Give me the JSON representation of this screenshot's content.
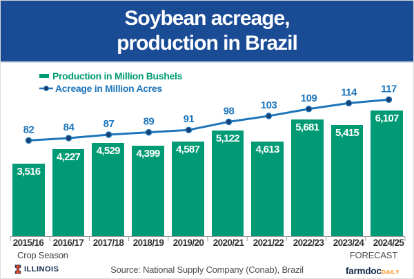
{
  "header": {
    "title_lines": [
      "Soybean acreage,",
      "production in Brazil"
    ]
  },
  "legend": [
    {
      "label": "Production in Million Bushels",
      "type": "bar"
    },
    {
      "label": "Acreage in Million Acres",
      "type": "line"
    }
  ],
  "chart_data": {
    "type": "bar+line",
    "categories": [
      "2015/16",
      "2016/17",
      "2017/18",
      "2018/19",
      "2019/20",
      "2020/21",
      "2021/22",
      "2022/23",
      "2023/24",
      "2024/25"
    ],
    "series": [
      {
        "name": "Production in Million Bushels",
        "type": "bar",
        "color": "#009B74",
        "values": [
          3516,
          4227,
          4529,
          4399,
          4587,
          5122,
          4613,
          5681,
          5415,
          6107
        ],
        "labels": [
          "3,516",
          "4,227",
          "4,529",
          "4,399",
          "4,587",
          "5,122",
          "4,613",
          "5,681",
          "5,415",
          "6,107"
        ]
      },
      {
        "name": "Acreage in Million Acres",
        "type": "line",
        "color": "#1C75BC",
        "point_color": "#1A3E6B",
        "values": [
          82,
          84,
          87,
          89,
          91,
          98,
          103,
          109,
          114,
          117
        ],
        "labels": [
          "82",
          "84",
          "87",
          "89",
          "91",
          "98",
          "103",
          "109",
          "114",
          "117"
        ]
      }
    ],
    "xlabel": "Crop Season",
    "annotations": [
      "FORECAST"
    ],
    "legend_position": "top-left",
    "grid": false,
    "bar_axis_range": [
      0,
      6300
    ],
    "line_axis_range": [
      0,
      148
    ]
  },
  "footer": {
    "crop_season_label": "Crop Season",
    "forecast_label": "FORECAST",
    "source": "Source: National Supply Company (Conab), Brazil",
    "illinois": "ILLINOIS",
    "farmdoc": "farmdoc",
    "daily": "DAILY"
  },
  "colors": {
    "header_bg": "#1A4B95",
    "bar_green": "#009B74",
    "line_blue": "#1C75BC",
    "point_navy": "#1A3E6B",
    "axis_gray": "#999999",
    "label_dark": "#333333",
    "muted_gray": "#4d4d4d",
    "illinois_navy": "#13294B",
    "illinois_orange": "#E84A27",
    "daily_orange": "#F7941D"
  }
}
